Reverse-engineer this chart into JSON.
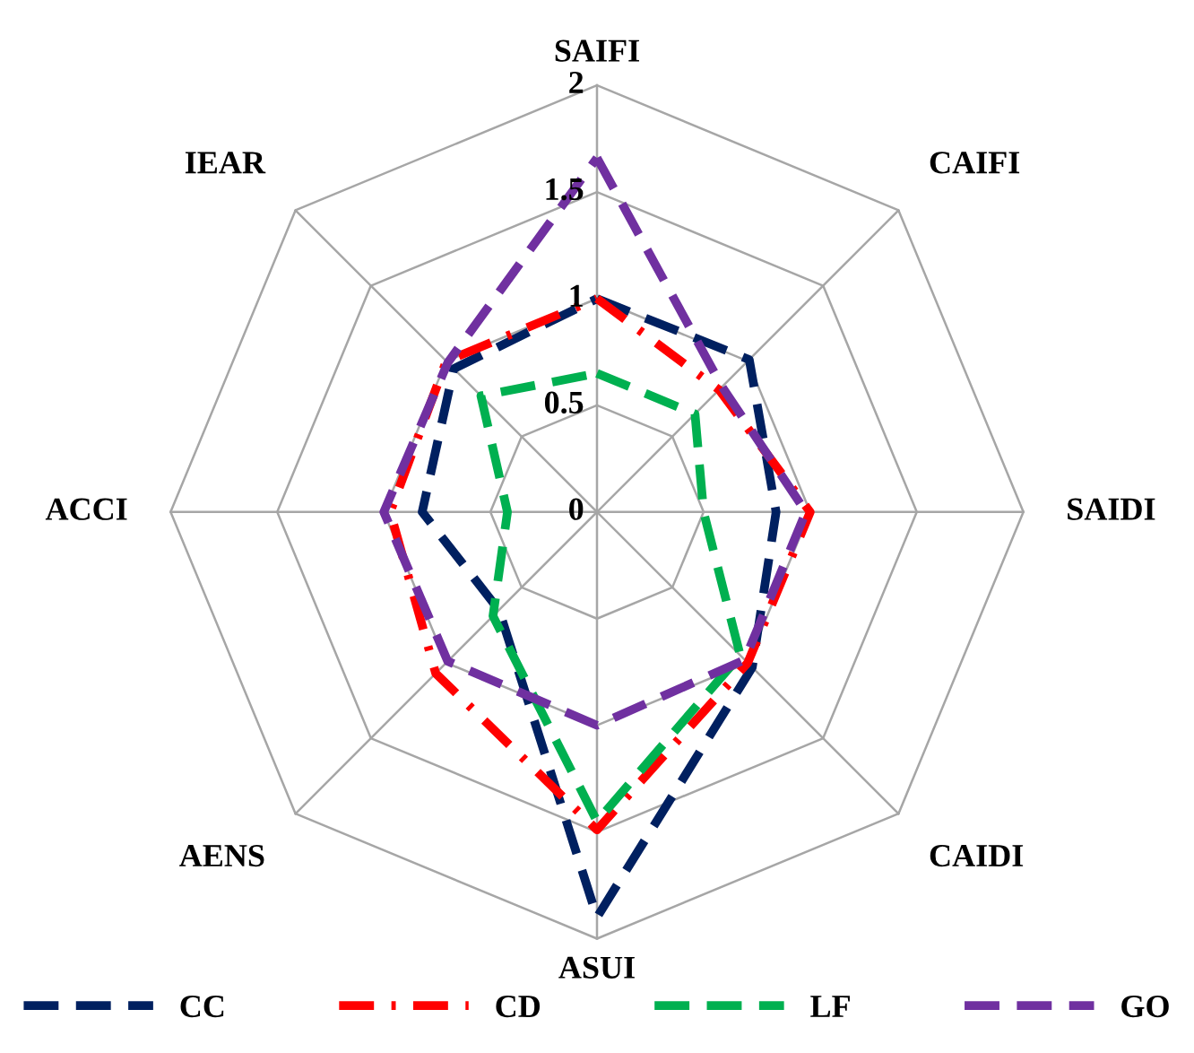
{
  "chart_data": {
    "type": "radar",
    "categories": [
      "SAIFI",
      "CAIFI",
      "SAIDI",
      "CAIDI",
      "ASUI",
      "AENS",
      "ACCI",
      "IEAR"
    ],
    "ylim": [
      0,
      2
    ],
    "yticks": [
      0,
      0.5,
      1,
      1.5,
      2
    ],
    "grid": true,
    "legend": "bottom",
    "series": [
      {
        "name": "CC",
        "color": "#002060",
        "line_style": "dashed",
        "values": [
          1.0,
          1.01,
          0.84,
          1.03,
          1.9,
          0.65,
          0.82,
          0.95
        ]
      },
      {
        "name": "CD",
        "color": "#ff0000",
        "line_style": "dashdot",
        "values": [
          1.0,
          0.81,
          1.0,
          1.0,
          1.49,
          1.07,
          0.97,
          1.0
        ]
      },
      {
        "name": "LF",
        "color": "#00b050",
        "line_style": "dashed",
        "values": [
          0.65,
          0.65,
          0.5,
          0.95,
          1.45,
          0.69,
          0.42,
          0.77
        ]
      },
      {
        "name": "GO",
        "color": "#7030a0",
        "line_style": "dashed",
        "values": [
          1.66,
          0.83,
          0.98,
          0.98,
          1.0,
          0.99,
          1.0,
          0.99
        ]
      }
    ]
  }
}
